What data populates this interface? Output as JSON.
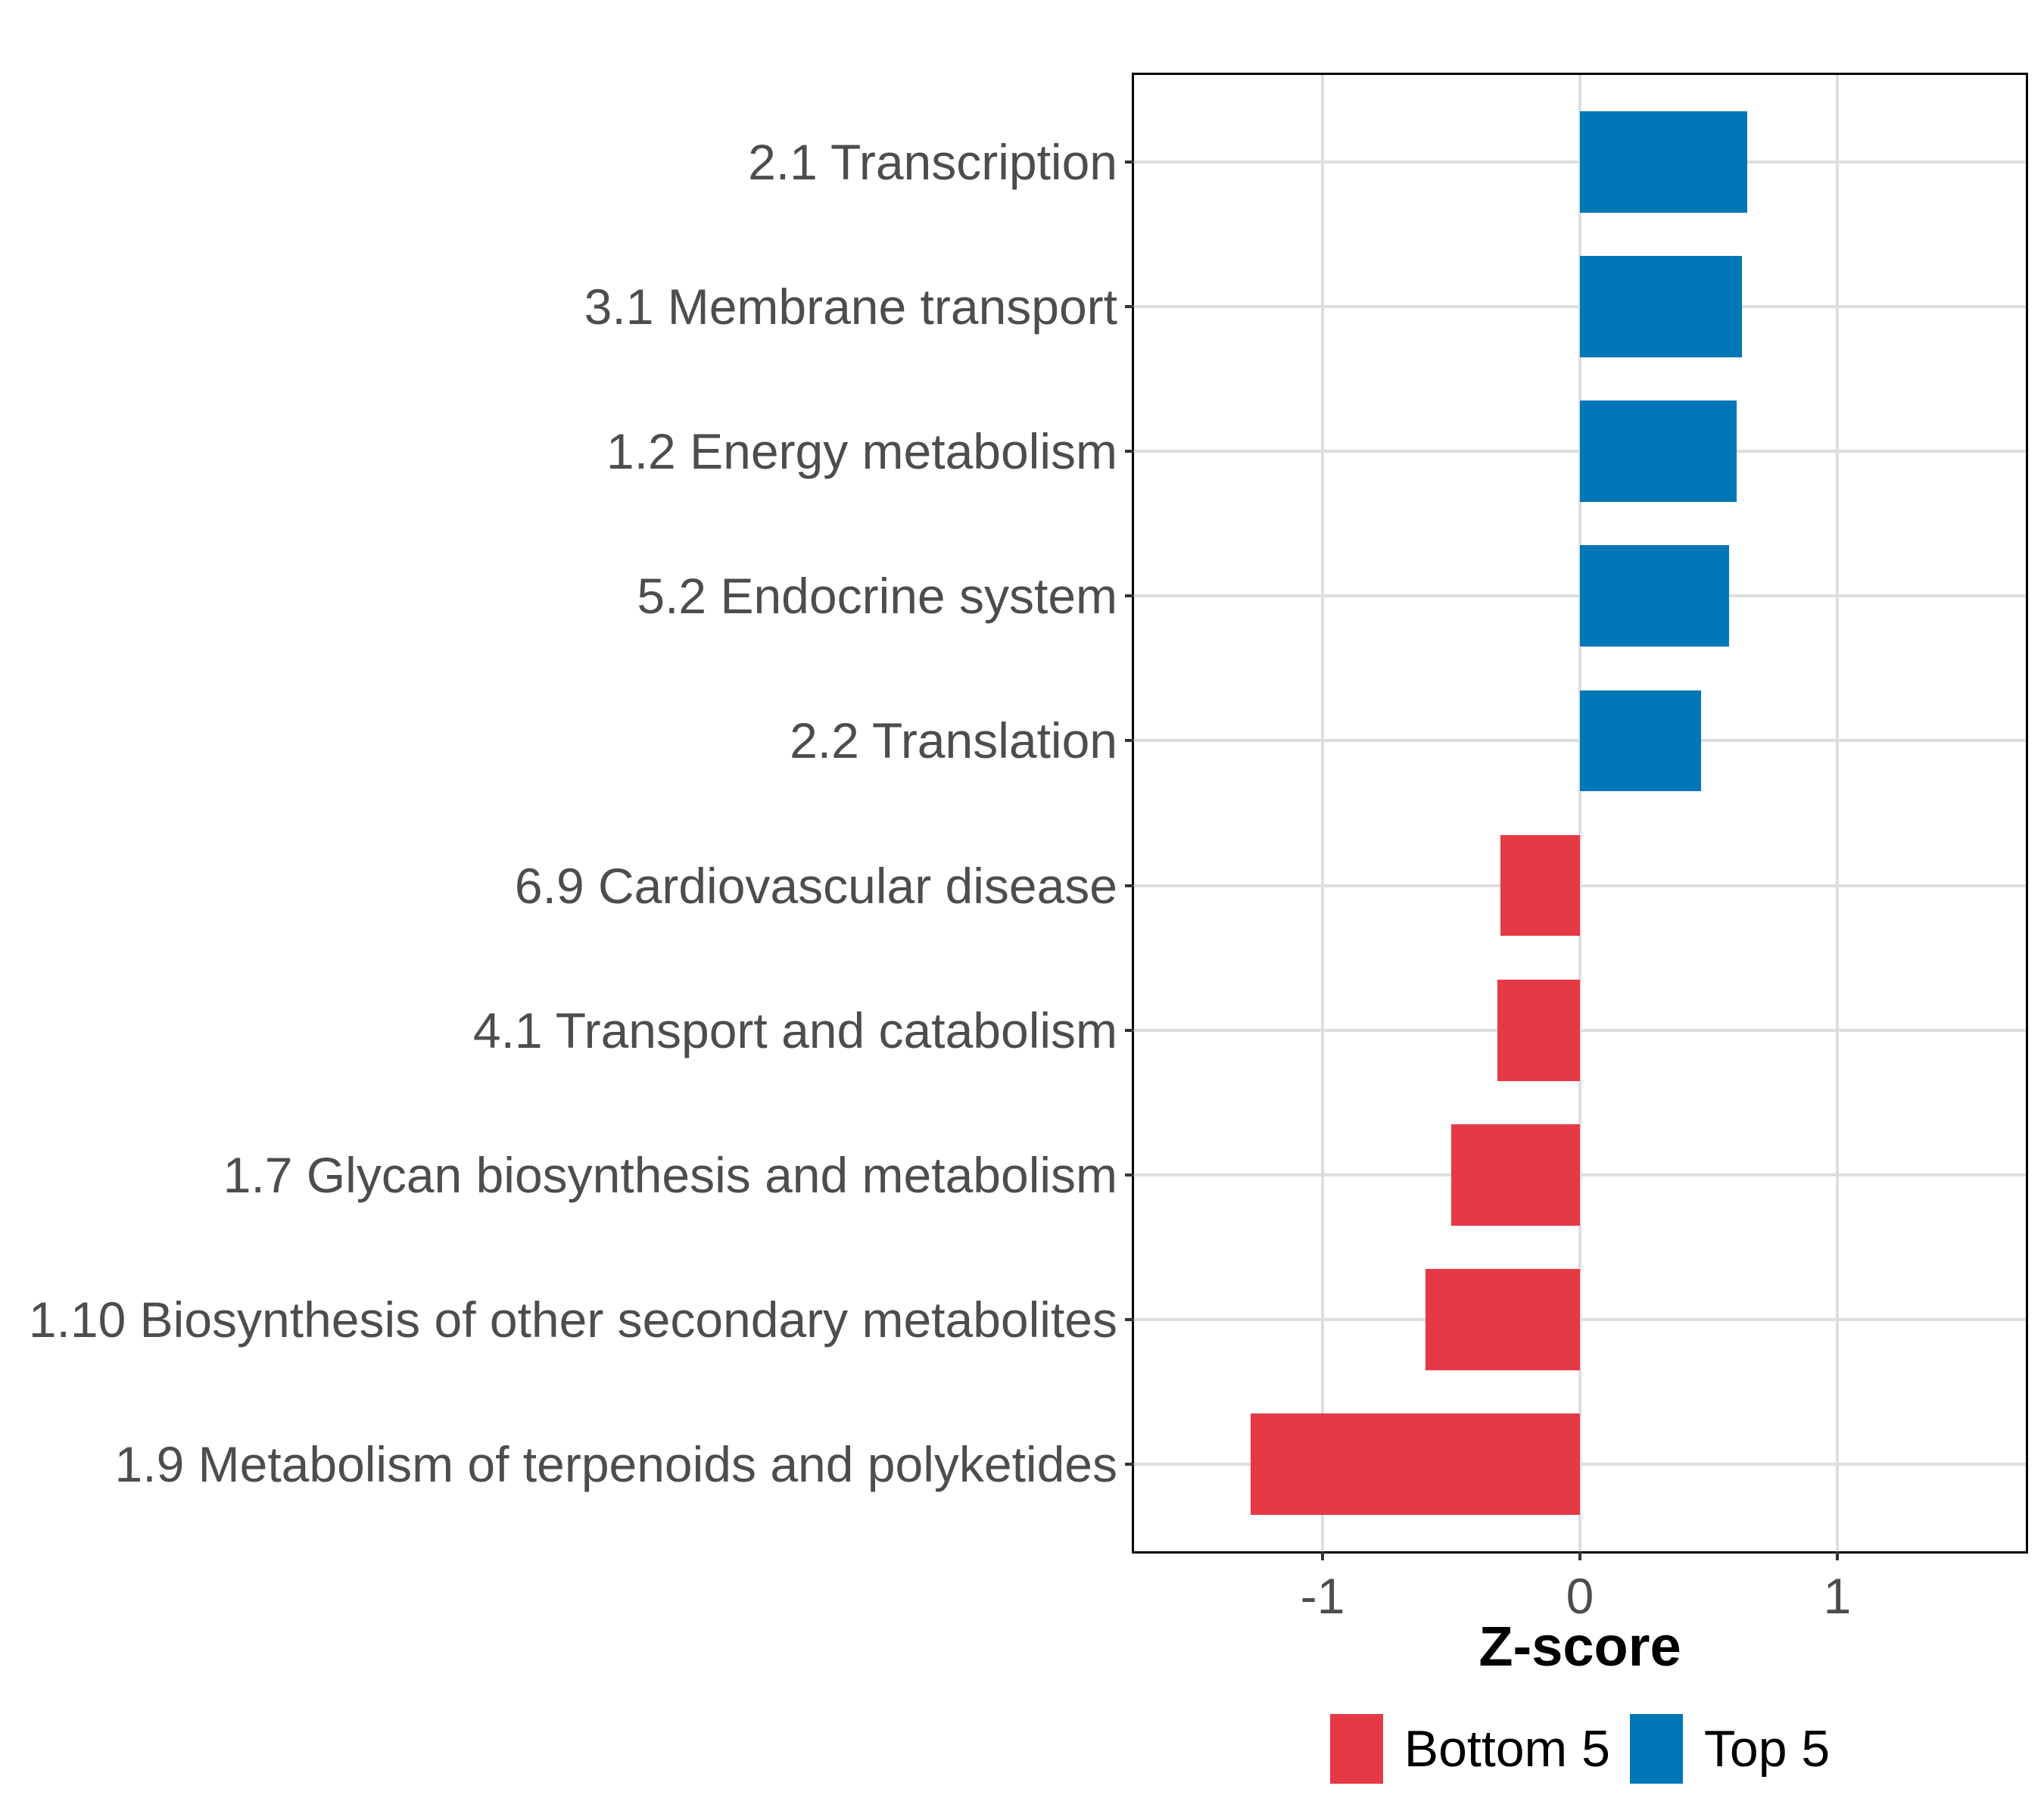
{
  "figure": {
    "background": "#FFFFFF"
  },
  "chart_data": {
    "type": "bar",
    "orientation": "horizontal",
    "xlabel": "Z-score",
    "ylabel": "",
    "xlim": [
      -1.73,
      1.73
    ],
    "x_ticks": [
      -1,
      0,
      1
    ],
    "x_tick_labels": [
      "-1",
      "0",
      "1"
    ],
    "grid": "major",
    "legend_position": "bottom",
    "bar_width_fraction": 0.7,
    "categories": [
      "2.1 Transcription",
      "3.1 Membrane transport",
      "1.2 Energy metabolism",
      "5.2 Endocrine system",
      "2.2 Translation",
      "6.9 Cardiovascular disease",
      "4.1 Transport and catabolism",
      "1.7 Glycan biosynthesis and metabolism",
      "1.10 Biosynthesis of other secondary metabolites",
      "1.9 Metabolism of terpenoids and polyketides"
    ],
    "values": [
      0.65,
      0.63,
      0.61,
      0.58,
      0.47,
      -0.31,
      -0.32,
      -0.5,
      -0.6,
      -1.28
    ],
    "groups": [
      "Top 5",
      "Top 5",
      "Top 5",
      "Top 5",
      "Top 5",
      "Bottom 5",
      "Bottom 5",
      "Bottom 5",
      "Bottom 5",
      "Bottom 5"
    ],
    "colors": {
      "Top 5": "#0077B6",
      "Bottom 5": "#E63946"
    }
  },
  "axis": {
    "grid_color": "#DEDEDE",
    "tick_color": "#333333",
    "label_color": "#4D4D4D",
    "title_color": "#000000",
    "panel_border_color": "#000000"
  },
  "legend": {
    "items": [
      {
        "label": "Bottom 5",
        "color": "#E63946"
      },
      {
        "label": "Top 5",
        "color": "#0077B6"
      }
    ]
  }
}
